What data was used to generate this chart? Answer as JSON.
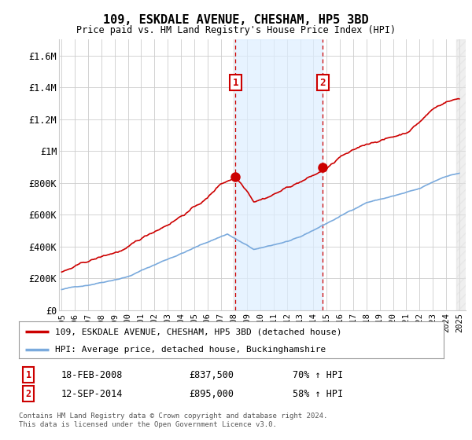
{
  "title": "109, ESKDALE AVENUE, CHESHAM, HP5 3BD",
  "subtitle": "Price paid vs. HM Land Registry's House Price Index (HPI)",
  "legend_line1": "109, ESKDALE AVENUE, CHESHAM, HP5 3BD (detached house)",
  "legend_line2": "HPI: Average price, detached house, Buckinghamshire",
  "annotation1_date": "18-FEB-2008",
  "annotation1_price": "£837,500",
  "annotation1_hpi": "70% ↑ HPI",
  "annotation2_date": "12-SEP-2014",
  "annotation2_price": "£895,000",
  "annotation2_hpi": "58% ↑ HPI",
  "footer": "Contains HM Land Registry data © Crown copyright and database right 2024.\nThis data is licensed under the Open Government Licence v3.0.",
  "red_color": "#cc0000",
  "blue_color": "#7aaadd",
  "annotation_box_color": "#cc0000",
  "shade_color": "#ddeeff",
  "grid_color": "#cccccc",
  "ylim": [
    0,
    1700000
  ],
  "yticks": [
    0,
    200000,
    400000,
    600000,
    800000,
    1000000,
    1200000,
    1400000,
    1600000
  ],
  "ytick_labels": [
    "£0",
    "£200K",
    "£400K",
    "£600K",
    "£800K",
    "£1M",
    "£1.2M",
    "£1.4M",
    "£1.6M"
  ],
  "sale1_year": 2008.12,
  "sale1_value": 837500,
  "sale2_year": 2014.71,
  "sale2_value": 895000,
  "xmin": 1994.8,
  "xmax": 2025.5
}
